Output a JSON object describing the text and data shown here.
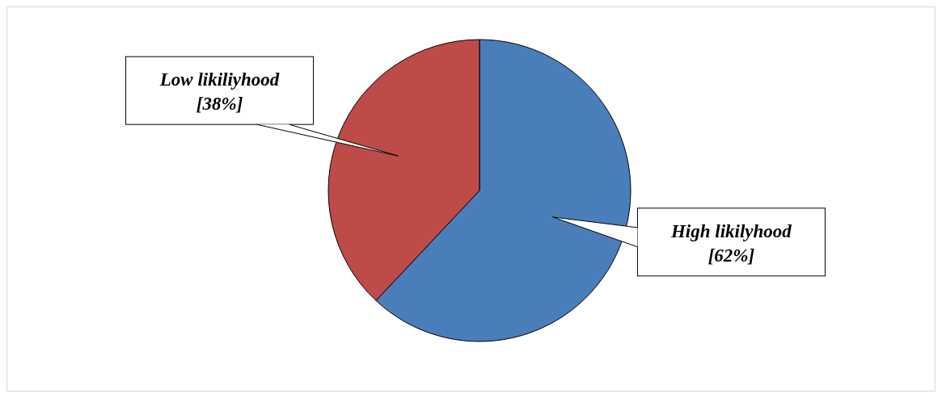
{
  "chart_data": {
    "type": "pie",
    "categories": [
      "High likilyhood",
      "Low likiliyhood"
    ],
    "values": [
      62,
      38
    ],
    "colors": [
      "#4a7ebb",
      "#be4b48"
    ],
    "value_labels": [
      "[62%]",
      "[38%]"
    ]
  }
}
